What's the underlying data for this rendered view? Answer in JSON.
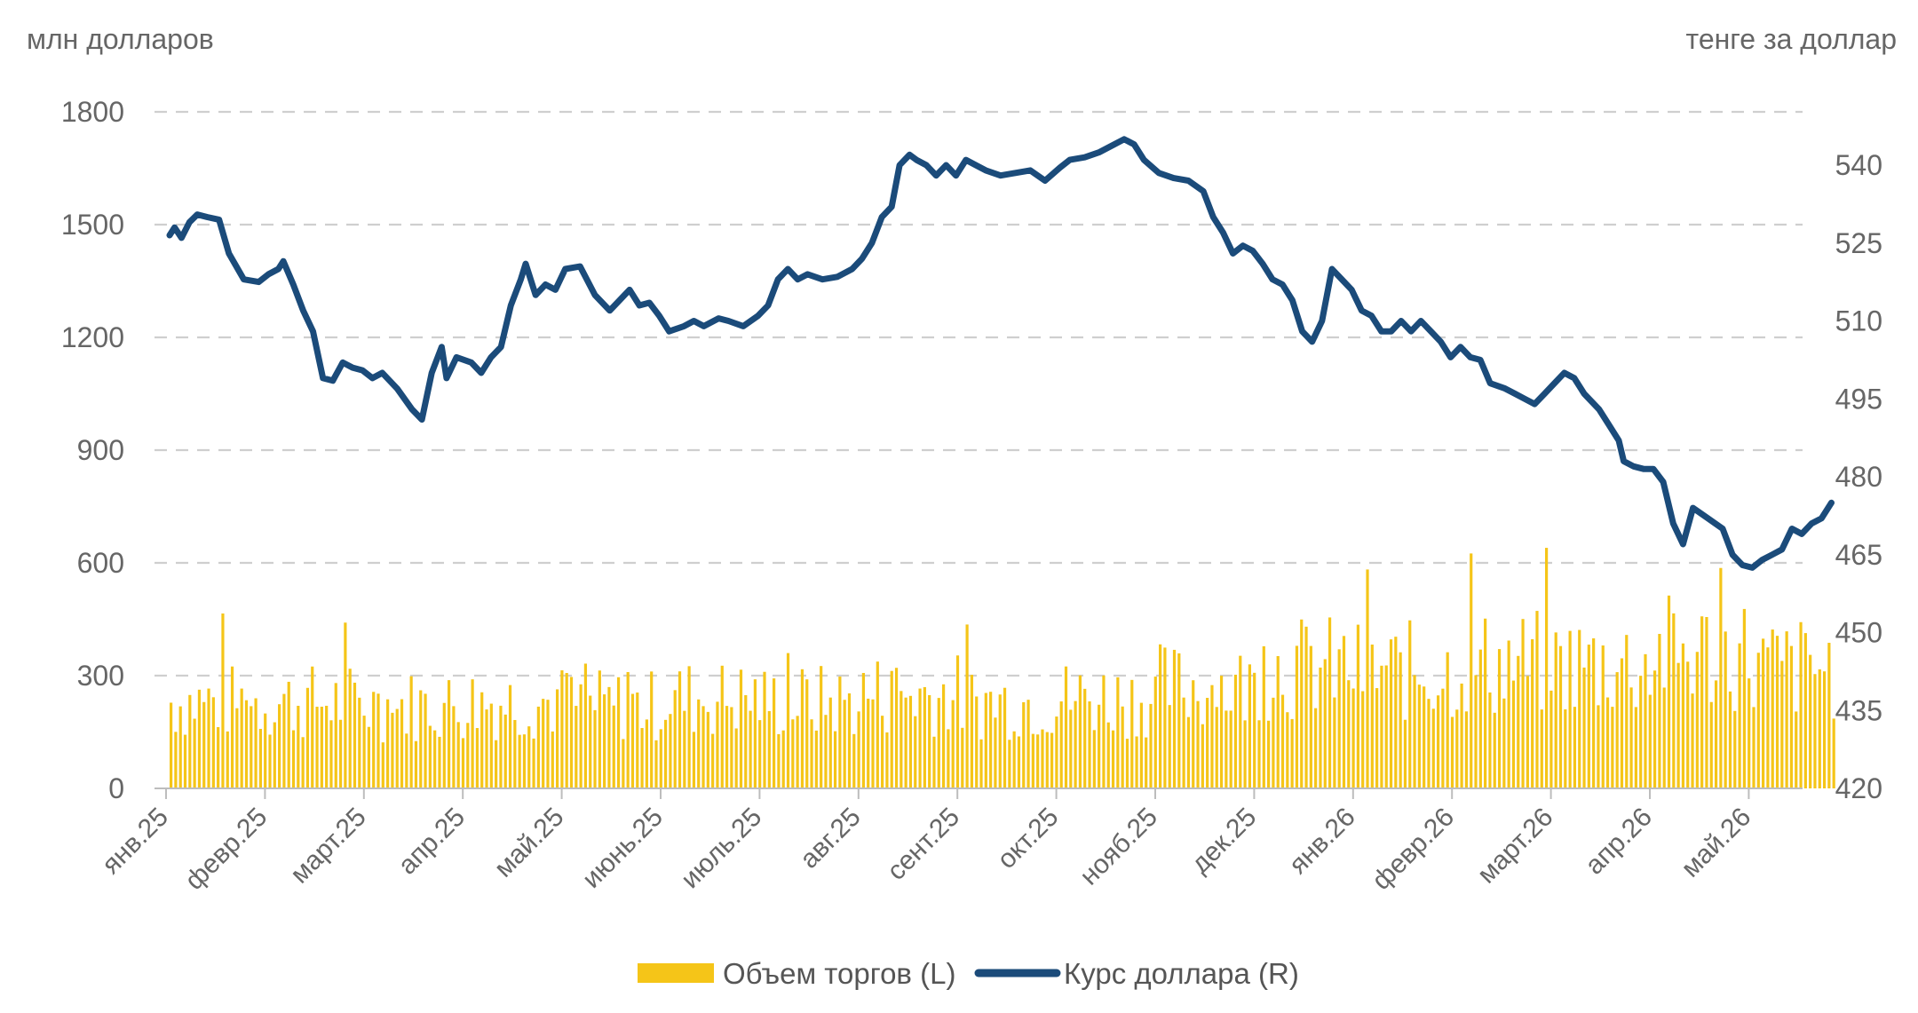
{
  "chart_data": {
    "type": "bar+line",
    "left_axis_title": "млн долларов",
    "right_axis_title": "тенге за доллар",
    "left_ticks": [
      "0",
      "300",
      "600",
      "900",
      "1200",
      "1500",
      "1800"
    ],
    "right_ticks": [
      "420",
      "435",
      "450",
      "465",
      "480",
      "495",
      "510",
      "525",
      "540"
    ],
    "ylim_left": [
      0,
      1800
    ],
    "ylim_right": [
      420,
      550
    ],
    "grid": true,
    "legend_position": "bottom",
    "months": [
      "янв.25",
      "февр.25",
      "март.25",
      "апр.25",
      "май.25",
      "июнь.25",
      "июль.25",
      "авг.25",
      "сент.25",
      "окт.25",
      "нояб.25",
      "дек.25",
      "янв.26",
      "февр.26",
      "март.26",
      "апр.26",
      "май.26"
    ],
    "series": [
      {
        "name": "Объем торгов (L)",
        "type": "bar",
        "axis": "left",
        "color": "#F5C518",
        "monthly_volume_approx": [
          230,
          230,
          220,
          230,
          220,
          240,
          230,
          250,
          230,
          240,
          270,
          320,
          310,
          330,
          330,
          360,
          320
        ]
      },
      {
        "name": "Курс доллара (R)",
        "type": "line",
        "axis": "right",
        "color": "#1B4B7A",
        "points": [
          [
            0,
            526.5
          ],
          [
            0.05,
            528
          ],
          [
            0.12,
            526
          ],
          [
            0.2,
            529
          ],
          [
            0.28,
            530.5
          ],
          [
            0.38,
            530
          ],
          [
            0.5,
            529.5
          ],
          [
            0.6,
            523
          ],
          [
            0.75,
            518
          ],
          [
            0.9,
            517.5
          ],
          [
            1.0,
            519
          ],
          [
            1.1,
            520
          ],
          [
            1.15,
            521.5
          ],
          [
            1.25,
            517
          ],
          [
            1.35,
            512
          ],
          [
            1.45,
            508
          ],
          [
            1.55,
            499
          ],
          [
            1.65,
            498.5
          ],
          [
            1.75,
            502
          ],
          [
            1.85,
            501
          ],
          [
            1.95,
            500.5
          ],
          [
            2.05,
            499
          ],
          [
            2.15,
            500
          ],
          [
            2.3,
            497
          ],
          [
            2.45,
            493
          ],
          [
            2.55,
            491
          ],
          [
            2.65,
            500
          ],
          [
            2.75,
            505
          ],
          [
            2.8,
            499
          ],
          [
            2.9,
            503
          ],
          [
            3.05,
            502
          ],
          [
            3.15,
            500
          ],
          [
            3.25,
            503
          ],
          [
            3.35,
            505
          ],
          [
            3.45,
            513
          ],
          [
            3.55,
            518
          ],
          [
            3.6,
            521
          ],
          [
            3.7,
            515
          ],
          [
            3.8,
            517
          ],
          [
            3.9,
            516
          ],
          [
            4.0,
            520
          ],
          [
            4.15,
            520.5
          ],
          [
            4.3,
            515
          ],
          [
            4.45,
            512
          ],
          [
            4.55,
            514
          ],
          [
            4.65,
            516
          ],
          [
            4.75,
            513
          ],
          [
            4.85,
            513.5
          ],
          [
            4.95,
            511
          ],
          [
            5.05,
            508
          ],
          [
            5.2,
            509
          ],
          [
            5.3,
            510
          ],
          [
            5.4,
            509
          ],
          [
            5.55,
            510.5
          ],
          [
            5.65,
            510
          ],
          [
            5.8,
            509
          ],
          [
            5.95,
            511
          ],
          [
            6.05,
            513
          ],
          [
            6.15,
            518
          ],
          [
            6.25,
            520
          ],
          [
            6.35,
            518
          ],
          [
            6.45,
            519
          ],
          [
            6.6,
            518
          ],
          [
            6.75,
            518.5
          ],
          [
            6.9,
            520
          ],
          [
            7.0,
            522
          ],
          [
            7.1,
            525
          ],
          [
            7.2,
            530
          ],
          [
            7.3,
            532
          ],
          [
            7.38,
            540
          ],
          [
            7.48,
            542
          ],
          [
            7.55,
            541
          ],
          [
            7.65,
            540
          ],
          [
            7.75,
            538
          ],
          [
            7.85,
            540
          ],
          [
            7.95,
            538
          ],
          [
            8.05,
            541
          ],
          [
            8.15,
            540
          ],
          [
            8.25,
            539
          ],
          [
            8.4,
            538
          ],
          [
            8.55,
            538.5
          ],
          [
            8.7,
            539
          ],
          [
            8.85,
            537
          ],
          [
            9.0,
            539.5
          ],
          [
            9.1,
            541
          ],
          [
            9.25,
            541.5
          ],
          [
            9.4,
            542.5
          ],
          [
            9.55,
            544
          ],
          [
            9.65,
            545
          ],
          [
            9.75,
            544
          ],
          [
            9.85,
            541
          ],
          [
            10.0,
            538.5
          ],
          [
            10.15,
            537.5
          ],
          [
            10.3,
            537
          ],
          [
            10.45,
            535
          ],
          [
            10.55,
            530
          ],
          [
            10.65,
            527
          ],
          [
            10.75,
            523
          ],
          [
            10.85,
            524.5
          ],
          [
            10.95,
            523.5
          ],
          [
            11.05,
            521
          ],
          [
            11.15,
            518
          ],
          [
            11.25,
            517
          ],
          [
            11.35,
            514
          ],
          [
            11.45,
            508
          ],
          [
            11.55,
            506
          ],
          [
            11.65,
            510
          ],
          [
            11.75,
            520
          ],
          [
            11.85,
            518
          ],
          [
            11.95,
            516
          ],
          [
            12.05,
            512
          ],
          [
            12.15,
            511
          ],
          [
            12.25,
            508
          ],
          [
            12.35,
            508
          ],
          [
            12.45,
            510
          ],
          [
            12.55,
            508
          ],
          [
            12.65,
            510
          ],
          [
            12.75,
            508
          ],
          [
            12.85,
            506
          ],
          [
            12.95,
            503
          ],
          [
            13.05,
            505
          ],
          [
            13.15,
            503
          ],
          [
            13.25,
            502.5
          ],
          [
            13.35,
            498
          ],
          [
            13.5,
            497
          ],
          [
            13.6,
            496
          ],
          [
            13.7,
            495
          ],
          [
            13.8,
            494
          ],
          [
            13.9,
            496
          ],
          [
            14.0,
            498
          ],
          [
            14.1,
            500
          ],
          [
            14.2,
            499
          ],
          [
            14.3,
            496
          ],
          [
            14.45,
            493
          ],
          [
            14.55,
            490
          ],
          [
            14.65,
            487
          ],
          [
            14.7,
            483
          ],
          [
            14.8,
            482
          ],
          [
            14.9,
            481.5
          ],
          [
            15.0,
            481.5
          ],
          [
            15.1,
            479
          ],
          [
            15.2,
            471
          ],
          [
            15.3,
            467
          ],
          [
            15.4,
            474
          ],
          [
            15.55,
            472
          ],
          [
            15.7,
            470
          ],
          [
            15.8,
            465
          ],
          [
            15.9,
            463
          ],
          [
            16.0,
            462.5
          ],
          [
            16.1,
            464
          ],
          [
            16.2,
            465
          ],
          [
            16.3,
            466
          ],
          [
            16.4,
            470
          ],
          [
            16.5,
            469
          ],
          [
            16.6,
            471
          ],
          [
            16.7,
            472
          ],
          [
            16.8,
            475
          ]
        ]
      }
    ]
  }
}
